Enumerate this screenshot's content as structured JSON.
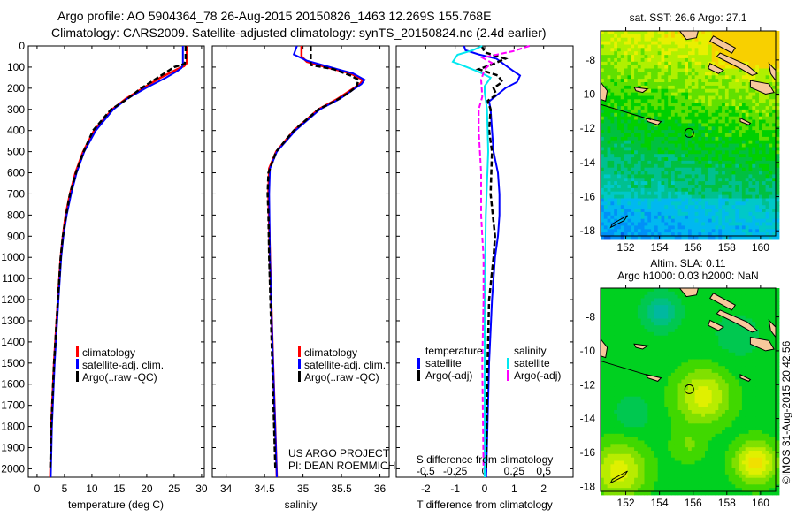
{
  "header": {
    "title_line1": "Argo profile: AO 5904364_78 26-Aug-2015 20150826_1463 12.269S 155.768E",
    "title_line2": "Climatology: CARS2009. Satellite-adjusted climatology: synTS_20150824.nc (2.4d earlier)"
  },
  "credits": {
    "project": "US ARGO PROJECT",
    "pi": "PI: DEAN ROEMMICH",
    "stamp": "©IMOS 31-Aug-2015 20:42:56"
  },
  "colors": {
    "climatology": "#ff0000",
    "satellite": "#0000ff",
    "argo": "#000000",
    "salinity_satellite": "#00e8f0",
    "salinity_argo": "#ff00ff",
    "land": "#f8c89c"
  },
  "chart_data": [
    {
      "type": "line",
      "title": "",
      "xlabel": "temperature (deg C)",
      "ylabel": "",
      "xlim": [
        -1.6,
        30.5
      ],
      "ylim": [
        2040,
        0
      ],
      "xticks": [
        "0",
        "5",
        "10",
        "15",
        "20",
        "25",
        "30"
      ],
      "xtick_values": [
        0,
        5,
        10,
        15,
        20,
        25,
        30
      ],
      "yticks": [
        "0",
        "100",
        "200",
        "300",
        "400",
        "500",
        "600",
        "700",
        "800",
        "900",
        "1000",
        "1100",
        "1200",
        "1300",
        "1400",
        "1500",
        "1600",
        "1700",
        "1800",
        "1900",
        "2000"
      ],
      "ytick_values": [
        0,
        100,
        200,
        300,
        400,
        500,
        600,
        700,
        800,
        900,
        1000,
        1100,
        1200,
        1300,
        1400,
        1500,
        1600,
        1700,
        1800,
        1900,
        2000
      ],
      "legend": [
        "climatology",
        "satellite-adj. clim.",
        "Argo(..raw -QC)"
      ],
      "series": [
        {
          "name": "climatology",
          "depth": [
            0,
            80,
            95,
            110,
            150,
            200,
            250,
            300,
            400,
            500,
            600,
            700,
            800,
            900,
            1000,
            1200,
            1500,
            1800,
            2040
          ],
          "values": [
            27.3,
            27.3,
            26.8,
            25.6,
            22.5,
            19.3,
            16.2,
            13.7,
            10.4,
            8.4,
            7.0,
            6.0,
            5.2,
            4.7,
            4.3,
            3.8,
            3.1,
            2.6,
            2.4
          ]
        },
        {
          "name": "satellite-adj. clim.",
          "depth": [
            0,
            90,
            105,
            120,
            150,
            200,
            250,
            300,
            400,
            500,
            600,
            700,
            800,
            900,
            1000,
            1200,
            1500,
            1800,
            2040
          ],
          "values": [
            26.6,
            26.6,
            26.3,
            25.5,
            23.5,
            19.8,
            16.4,
            13.9,
            10.7,
            8.6,
            7.2,
            6.2,
            5.4,
            4.8,
            4.4,
            3.9,
            3.2,
            2.7,
            2.5
          ]
        },
        {
          "name": "Argo(..raw -QC)",
          "depth": [
            0,
            60,
            85,
            100,
            150,
            200,
            250,
            300,
            400,
            500,
            600,
            700,
            800,
            900,
            1000,
            1200,
            1500,
            1800,
            2000
          ],
          "values": [
            27.1,
            27.1,
            26.9,
            25.0,
            22.0,
            19.0,
            16.5,
            13.5,
            10.2,
            8.5,
            7.1,
            6.0,
            5.3,
            4.7,
            4.3,
            3.8,
            3.1,
            2.6,
            2.4
          ]
        }
      ]
    },
    {
      "type": "line",
      "title": "",
      "xlabel": "salinity",
      "ylabel": "",
      "xlim": [
        33.82,
        36.12
      ],
      "ylim": [
        2040,
        0
      ],
      "xticks": [
        "34",
        "34.5",
        "35",
        "35.5",
        "36"
      ],
      "xtick_values": [
        34,
        34.5,
        35,
        35.5,
        36
      ],
      "legend": [
        "climatology",
        "satellite-adj. clim.",
        "Argo(..raw -QC)"
      ],
      "series": [
        {
          "name": "climatology",
          "depth": [
            0,
            50,
            75,
            100,
            130,
            160,
            180,
            200,
            250,
            300,
            400,
            500,
            580,
            700,
            1000,
            1500,
            2040
          ],
          "values": [
            34.98,
            34.98,
            35.05,
            35.3,
            35.62,
            35.78,
            35.74,
            35.66,
            35.45,
            35.2,
            34.88,
            34.65,
            34.56,
            34.55,
            34.57,
            34.61,
            34.66
          ]
        },
        {
          "name": "satellite-adj. clim.",
          "depth": [
            0,
            40,
            70,
            100,
            130,
            160,
            180,
            200,
            250,
            300,
            400,
            500,
            580,
            700,
            1000,
            1500,
            2040
          ],
          "values": [
            34.92,
            34.88,
            35.05,
            35.35,
            35.65,
            35.8,
            35.76,
            35.68,
            35.48,
            35.22,
            34.9,
            34.66,
            34.57,
            34.56,
            34.57,
            34.61,
            34.66
          ]
        },
        {
          "name": "Argo(..raw -QC)",
          "depth": [
            0,
            80,
            90,
            110,
            140,
            160,
            190,
            220,
            260,
            300,
            400,
            500,
            600,
            700,
            800,
            1000,
            1500,
            2000
          ],
          "values": [
            35.1,
            35.1,
            35.1,
            35.4,
            35.62,
            35.72,
            35.7,
            35.6,
            35.42,
            35.2,
            34.88,
            34.65,
            34.55,
            34.54,
            34.55,
            34.56,
            34.6,
            34.64
          ]
        }
      ]
    },
    {
      "type": "line",
      "title": "",
      "xlabel": "T difference from climatology",
      "x2label": "S difference from climatology",
      "xlim": [
        -3,
        3
      ],
      "x2lim": [
        -0.75,
        0.75
      ],
      "ylim": [
        2040,
        0
      ],
      "xticks": [
        "-2",
        "-1",
        "0",
        "1",
        "2"
      ],
      "xtick_values": [
        -2,
        -1,
        0,
        1,
        2
      ],
      "x2ticks": [
        "-0.5",
        "-0.25",
        "0",
        "0.25",
        "0.5"
      ],
      "x2tick_values": [
        -0.5,
        -0.25,
        0,
        0.25,
        0.5
      ],
      "legend": {
        "temperature_heading": "temperature",
        "salinity_heading": "salinity",
        "t_satellite": "satellite",
        "t_argo": "Argo(-adj)",
        "s_satellite": "satellite",
        "s_argo": "Argo(-adj)"
      },
      "series": [
        {
          "name": "T satellite",
          "axis": "T",
          "depth": [
            0,
            20,
            40,
            60,
            117,
            140,
            170,
            200,
            240,
            262,
            300,
            400,
            500,
            600,
            700,
            800,
            900,
            1000,
            1200,
            1500,
            2040
          ],
          "values": [
            -0.7,
            -0.65,
            -0.2,
            0.4,
            0.96,
            1.2,
            1.1,
            0.7,
            0.35,
            0.15,
            0.2,
            0.25,
            0.3,
            0.45,
            0.5,
            0.5,
            0.45,
            0.35,
            0.25,
            0.15,
            0.05
          ]
        },
        {
          "name": "T Argo(-adj)",
          "axis": "T",
          "depth": [
            0,
            30,
            60,
            85,
            110,
            140,
            170,
            200,
            230,
            260,
            300,
            400,
            500,
            700,
            900,
            1000,
            1200,
            1500,
            2000
          ],
          "values": [
            -0.1,
            0.0,
            0.7,
            0.3,
            -0.2,
            0.45,
            0.6,
            0.3,
            0.4,
            0.1,
            0.2,
            0.15,
            0.25,
            0.2,
            0.35,
            0.3,
            0.15,
            0.1,
            0.05
          ]
        },
        {
          "name": "S satellite",
          "axis": "S",
          "depth": [
            0,
            20,
            42,
            75,
            100,
            125,
            150,
            190,
            220,
            300,
            500,
            800,
            1200,
            1600,
            2040
          ],
          "values": [
            -0.02,
            -0.1,
            -0.23,
            -0.27,
            -0.15,
            -0.04,
            0.05,
            0.0,
            0.0,
            0.02,
            0.03,
            0.01,
            0.0,
            0.0,
            0.0
          ]
        },
        {
          "name": "S Argo(-adj)",
          "axis": "S",
          "depth": [
            0,
            25,
            55,
            80,
            110,
            160,
            240,
            300,
            400,
            600,
            800,
            900,
            1000,
            1200,
            1500,
            2000
          ],
          "values": [
            0.38,
            0.24,
            -0.02,
            0.06,
            0.0,
            -0.03,
            -0.02,
            -0.05,
            -0.05,
            -0.03,
            -0.03,
            -0.02,
            -0.01,
            -0.01,
            -0.02,
            -0.01
          ]
        }
      ]
    },
    {
      "type": "heatmap",
      "title": "sat. SST: 26.6 Argo: 27.1",
      "xlim": [
        150.5,
        160.9
      ],
      "ylim": [
        -18.3,
        -6.3
      ],
      "xticks": [
        "152",
        "154",
        "156",
        "158",
        "160"
      ],
      "xtick_values": [
        152,
        154,
        156,
        158,
        160
      ],
      "yticks": [
        "-8",
        "-10",
        "-12",
        "-14",
        "-16",
        "-18"
      ],
      "ytick_values": [
        -8,
        -10,
        -12,
        -14,
        -16,
        -18
      ],
      "marker": {
        "lon": 155.768,
        "lat": -12.269
      }
    },
    {
      "type": "heatmap",
      "title": "Altim. SLA: 0.11",
      "subtitle": "Argo h1000: 0.03 h2000: NaN",
      "xlim": [
        150.5,
        160.9
      ],
      "ylim": [
        -18.3,
        -6.3
      ],
      "xticks": [
        "152",
        "154",
        "156",
        "158",
        "160"
      ],
      "xtick_values": [
        152,
        154,
        156,
        158,
        160
      ],
      "yticks": [
        "-8",
        "-10",
        "-12",
        "-14",
        "-16",
        "-18"
      ],
      "ytick_values": [
        -8,
        -10,
        -12,
        -14,
        -16,
        -18
      ],
      "marker": {
        "lon": 155.768,
        "lat": -12.269
      }
    }
  ]
}
